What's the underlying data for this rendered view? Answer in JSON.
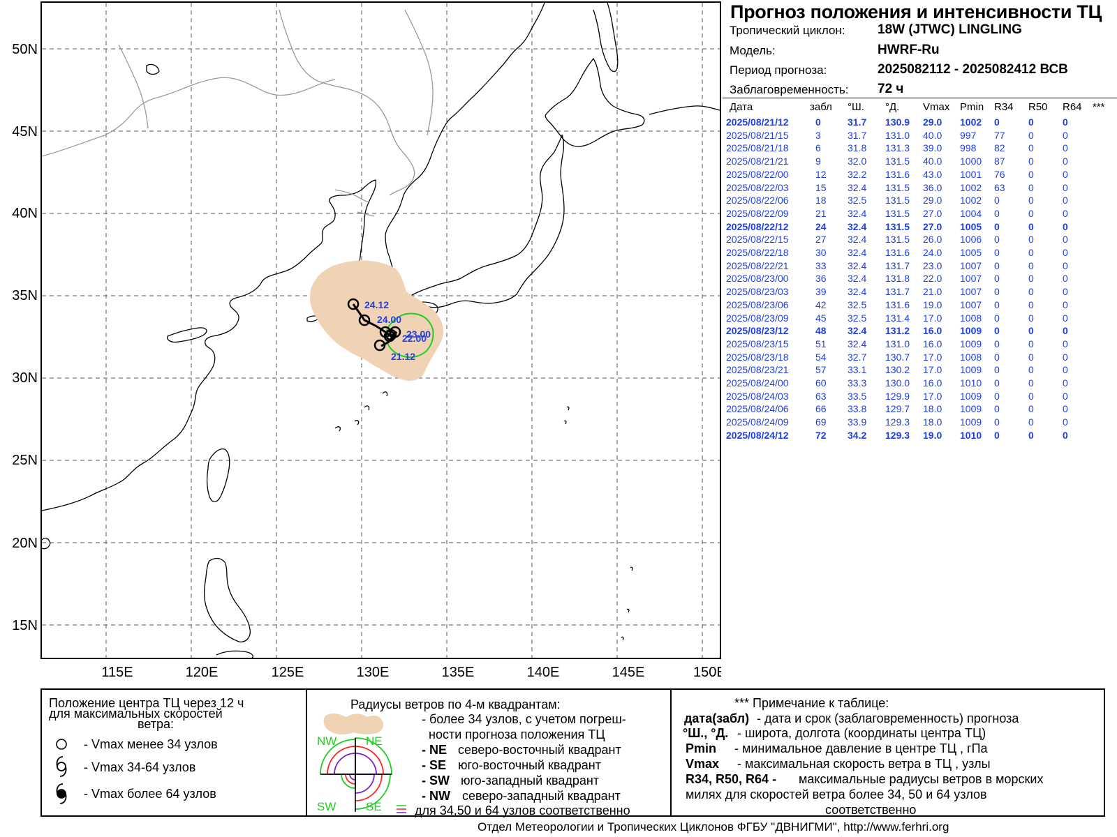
{
  "title": "Прогноз положения и интенсивности ТЦ",
  "info": {
    "cyclone_label": "Тропический циклон:",
    "cyclone_value": "18W (JTWC)  LINGLING",
    "model_label": "Модель:",
    "model_value": "HWRF-Ru",
    "period_label": "Период прогноза:",
    "period_value": "2025082112 - 2025082412 ВСВ",
    "lead_label": "Заблаговременность:",
    "lead_value": "72 ч"
  },
  "map": {
    "lat_labels": [
      "50N",
      "45N",
      "40N",
      "35N",
      "30N",
      "25N",
      "20N",
      "15N"
    ],
    "lon_labels": [
      "115E",
      "120E",
      "125E",
      "130E",
      "135E",
      "140E",
      "145E",
      "150E"
    ],
    "track_labels": [
      "24.12",
      "24.00",
      "23.00",
      "22.00",
      "21.12"
    ],
    "colors": {
      "wind_area": "#f0d2b4",
      "track": "#000000",
      "labels": "#1f3fe6",
      "r34_circle": "#22cc22",
      "coast": "#000000",
      "borders": "#999999",
      "grid": "#555555"
    }
  },
  "table": {
    "headers": [
      "Дата",
      "забл",
      "°Ш.",
      "°Д.",
      "Vmax",
      "Pmin",
      "R34",
      "R50",
      "R64",
      "***"
    ],
    "rows": [
      {
        "date": "2025/08/21/12",
        "lead": "0",
        "lat": "31.7",
        "lon": "130.9",
        "vmax": "29.0",
        "pmin": "1002",
        "r34": "0",
        "r50": "0",
        "r64": "0",
        "bold": true
      },
      {
        "date": "2025/08/21/15",
        "lead": "3",
        "lat": "31.7",
        "lon": "131.0",
        "vmax": "40.0",
        "pmin": "997",
        "r34": "77",
        "r50": "0",
        "r64": "0",
        "bold": false
      },
      {
        "date": "2025/08/21/18",
        "lead": "6",
        "lat": "31.8",
        "lon": "131.3",
        "vmax": "39.0",
        "pmin": "998",
        "r34": "82",
        "r50": "0",
        "r64": "0",
        "bold": false
      },
      {
        "date": "2025/08/21/21",
        "lead": "9",
        "lat": "32.0",
        "lon": "131.5",
        "vmax": "40.0",
        "pmin": "1000",
        "r34": "87",
        "r50": "0",
        "r64": "0",
        "bold": false
      },
      {
        "date": "2025/08/22/00",
        "lead": "12",
        "lat": "32.2",
        "lon": "131.6",
        "vmax": "43.0",
        "pmin": "1001",
        "r34": "76",
        "r50": "0",
        "r64": "0",
        "bold": false
      },
      {
        "date": "2025/08/22/03",
        "lead": "15",
        "lat": "32.4",
        "lon": "131.5",
        "vmax": "36.0",
        "pmin": "1002",
        "r34": "63",
        "r50": "0",
        "r64": "0",
        "bold": false
      },
      {
        "date": "2025/08/22/06",
        "lead": "18",
        "lat": "32.5",
        "lon": "131.5",
        "vmax": "29.0",
        "pmin": "1002",
        "r34": "0",
        "r50": "0",
        "r64": "0",
        "bold": false
      },
      {
        "date": "2025/08/22/09",
        "lead": "21",
        "lat": "32.4",
        "lon": "131.5",
        "vmax": "27.0",
        "pmin": "1004",
        "r34": "0",
        "r50": "0",
        "r64": "0",
        "bold": false
      },
      {
        "date": "2025/08/22/12",
        "lead": "24",
        "lat": "32.4",
        "lon": "131.5",
        "vmax": "27.0",
        "pmin": "1005",
        "r34": "0",
        "r50": "0",
        "r64": "0",
        "bold": true
      },
      {
        "date": "2025/08/22/15",
        "lead": "27",
        "lat": "32.4",
        "lon": "131.5",
        "vmax": "26.0",
        "pmin": "1006",
        "r34": "0",
        "r50": "0",
        "r64": "0",
        "bold": false
      },
      {
        "date": "2025/08/22/18",
        "lead": "30",
        "lat": "32.4",
        "lon": "131.6",
        "vmax": "24.0",
        "pmin": "1005",
        "r34": "0",
        "r50": "0",
        "r64": "0",
        "bold": false
      },
      {
        "date": "2025/08/22/21",
        "lead": "33",
        "lat": "32.4",
        "lon": "131.7",
        "vmax": "23.0",
        "pmin": "1007",
        "r34": "0",
        "r50": "0",
        "r64": "0",
        "bold": false
      },
      {
        "date": "2025/08/23/00",
        "lead": "36",
        "lat": "32.4",
        "lon": "131.8",
        "vmax": "22.0",
        "pmin": "1007",
        "r34": "0",
        "r50": "0",
        "r64": "0",
        "bold": false
      },
      {
        "date": "2025/08/23/03",
        "lead": "39",
        "lat": "32.4",
        "lon": "131.7",
        "vmax": "21.0",
        "pmin": "1007",
        "r34": "0",
        "r50": "0",
        "r64": "0",
        "bold": false
      },
      {
        "date": "2025/08/23/06",
        "lead": "42",
        "lat": "32.5",
        "lon": "131.6",
        "vmax": "19.0",
        "pmin": "1007",
        "r34": "0",
        "r50": "0",
        "r64": "0",
        "bold": false
      },
      {
        "date": "2025/08/23/09",
        "lead": "45",
        "lat": "32.5",
        "lon": "131.4",
        "vmax": "17.0",
        "pmin": "1008",
        "r34": "0",
        "r50": "0",
        "r64": "0",
        "bold": false
      },
      {
        "date": "2025/08/23/12",
        "lead": "48",
        "lat": "32.4",
        "lon": "131.2",
        "vmax": "16.0",
        "pmin": "1009",
        "r34": "0",
        "r50": "0",
        "r64": "0",
        "bold": true
      },
      {
        "date": "2025/08/23/15",
        "lead": "51",
        "lat": "32.4",
        "lon": "131.0",
        "vmax": "16.0",
        "pmin": "1009",
        "r34": "0",
        "r50": "0",
        "r64": "0",
        "bold": false
      },
      {
        "date": "2025/08/23/18",
        "lead": "54",
        "lat": "32.7",
        "lon": "130.7",
        "vmax": "17.0",
        "pmin": "1008",
        "r34": "0",
        "r50": "0",
        "r64": "0",
        "bold": false
      },
      {
        "date": "2025/08/23/21",
        "lead": "57",
        "lat": "33.1",
        "lon": "130.2",
        "vmax": "17.0",
        "pmin": "1009",
        "r34": "0",
        "r50": "0",
        "r64": "0",
        "bold": false
      },
      {
        "date": "2025/08/24/00",
        "lead": "60",
        "lat": "33.3",
        "lon": "130.0",
        "vmax": "16.0",
        "pmin": "1010",
        "r34": "0",
        "r50": "0",
        "r64": "0",
        "bold": false
      },
      {
        "date": "2025/08/24/03",
        "lead": "63",
        "lat": "33.5",
        "lon": "129.9",
        "vmax": "17.0",
        "pmin": "1009",
        "r34": "0",
        "r50": "0",
        "r64": "0",
        "bold": false
      },
      {
        "date": "2025/08/24/06",
        "lead": "66",
        "lat": "33.8",
        "lon": "129.7",
        "vmax": "18.0",
        "pmin": "1009",
        "r34": "0",
        "r50": "0",
        "r64": "0",
        "bold": false
      },
      {
        "date": "2025/08/24/09",
        "lead": "69",
        "lat": "33.9",
        "lon": "129.3",
        "vmax": "18.0",
        "pmin": "1009",
        "r34": "0",
        "r50": "0",
        "r64": "0",
        "bold": false
      },
      {
        "date": "2025/08/24/12",
        "lead": "72",
        "lat": "34.2",
        "lon": "129.3",
        "vmax": "19.0",
        "pmin": "1010",
        "r34": "0",
        "r50": "0",
        "r64": "0",
        "bold": true
      }
    ]
  },
  "legend": {
    "center": {
      "title_1": "Положение центра ТЦ через 12 ч",
      "title_2": "для максимальных скоростей",
      "title_3": "ветра:",
      "item_1": "- Vmax  менее 34 узлов",
      "item_2": "- Vmax  34-64 узлов",
      "item_3": "- Vmax  более 64 узлов"
    },
    "radii": {
      "title": "Радиусы ветров по 4-м квадрантам:",
      "l1": "- более 34 узлов, с учетом погреш-",
      "l2": "ности прогноза положения ТЦ",
      "ne_key": "- NE",
      "ne_text": "северо-восточный квадрант",
      "se_key": "- SE",
      "se_text": "юго-восточный квадрант",
      "sw_key": "- SW",
      "sw_text": "юго-западный квадрант",
      "nw_key": "- NW",
      "nw_text": "северо-западный квадрант",
      "last": "для 34,50 и 64 узлов соответственно",
      "q_nw": "NW",
      "q_ne": "NE",
      "q_sw": "SW",
      "q_se": "SE"
    },
    "note": {
      "title": "*** Примечание к таблице:",
      "k1": "дата(забл)",
      "t1": "- дата и срок (заблаговременность) прогноза",
      "k2": "°Ш., °Д.",
      "t2": "- широта, долгота   (координаты центра ТЦ)",
      "k3": "Pmin",
      "t3": "- минимальное давление в центре ТЦ , гПа",
      "k4": "Vmax",
      "t4": "-  максимальная скорость ветра в ТЦ , узлы",
      "k5": "R34, R50, R64 -",
      "t5": "максимальные радиусы ветров в морских",
      "t6": "милях для скоростей ветра более 34, 50 и 64 узлов",
      "t7": "соответственно"
    }
  },
  "footer": "Отдел Метеорологии и Тропических Циклонов ФГБУ \"ДВНИГМИ\",  http://www.ferhri.org"
}
